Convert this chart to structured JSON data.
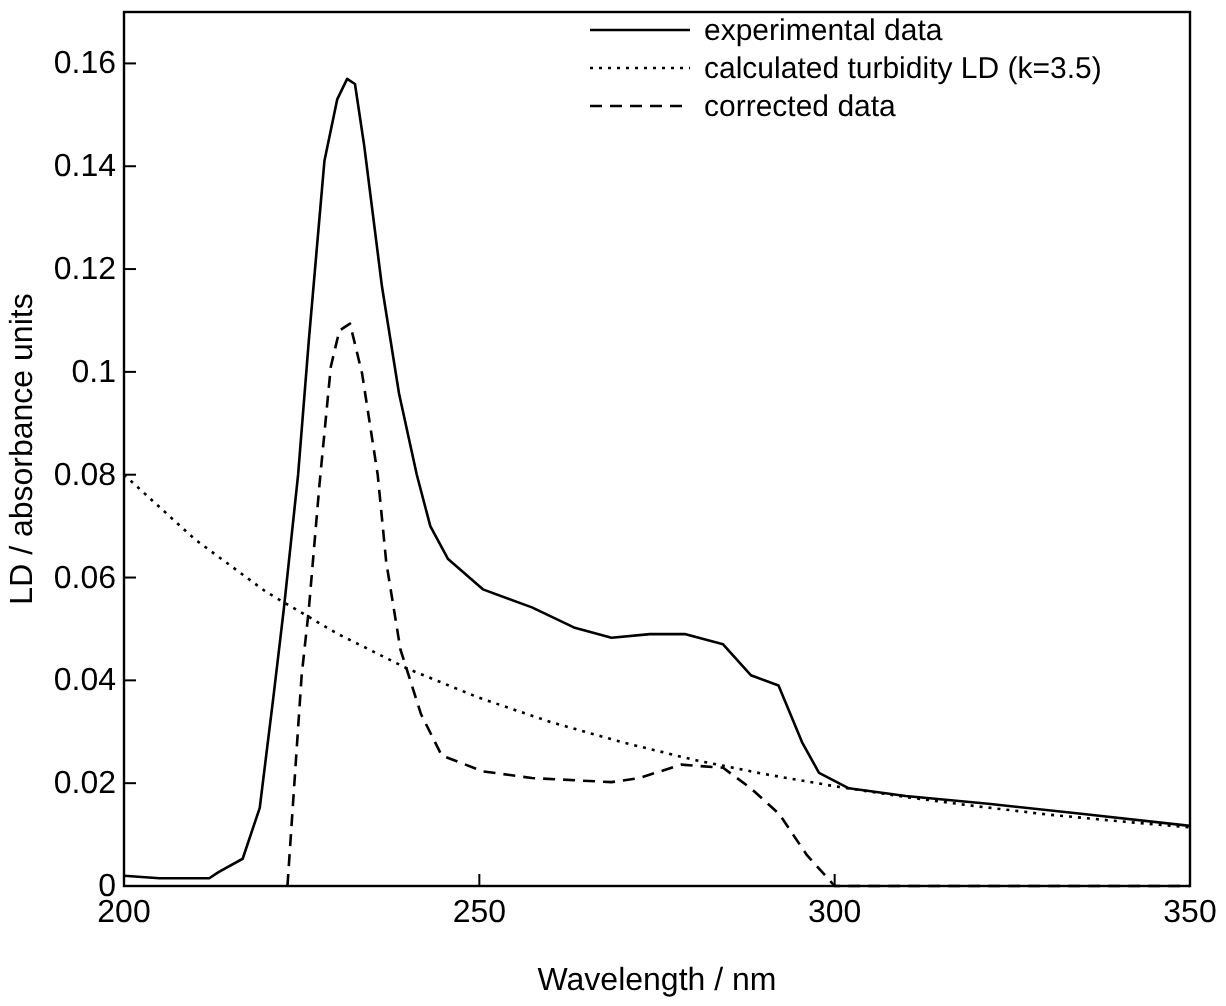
{
  "chart_data": {
    "type": "line",
    "xlabel": "Wavelength / nm",
    "ylabel": "LD / absorbance units",
    "xlim": [
      200,
      350
    ],
    "ylim": [
      0,
      0.17
    ],
    "xticks": [
      200,
      250,
      300,
      350
    ],
    "yticks": [
      0,
      0.02,
      0.04,
      0.06,
      0.08,
      0.1,
      0.12,
      0.14,
      0.16
    ],
    "grid": false,
    "legend": "top right",
    "series": [
      {
        "name": "experimental data",
        "color": "#000000",
        "line_style": "solid",
        "x": [
          200,
          205,
          212,
          213.3,
          216.7,
          219.1,
          221,
          222.5,
          224.5,
          226,
          228.2,
          230,
          231.4,
          232.5,
          233.8,
          236.3,
          238.7,
          241.2,
          243.1,
          245.6,
          250.5,
          257.4,
          263.3,
          268.6,
          274,
          278.9,
          284.3,
          288.2,
          292.1,
          295.4,
          297.8,
          302,
          310,
          321.6,
          335,
          350
        ],
        "values": [
          0.002,
          0.0015,
          0.0015,
          0.0027,
          0.0053,
          0.0152,
          0.0365,
          0.054,
          0.08,
          0.106,
          0.141,
          0.153,
          0.157,
          0.156,
          0.144,
          0.1166,
          0.0958,
          0.08,
          0.07,
          0.0636,
          0.0577,
          0.0542,
          0.0503,
          0.0483,
          0.049,
          0.049,
          0.047,
          0.041,
          0.039,
          0.028,
          0.022,
          0.019,
          0.0175,
          0.016,
          0.014,
          0.0117
        ]
      },
      {
        "name": "calculated turbidity LD (k=3.5)",
        "color": "#000000",
        "line_style": "dotted",
        "x": [
          200,
          210,
          220,
          230,
          240,
          250,
          260,
          270,
          280,
          290,
          300,
          310,
          320,
          330,
          340,
          350
        ],
        "values": [
          0.08,
          0.0674,
          0.0572,
          0.0491,
          0.0422,
          0.0366,
          0.0319,
          0.028,
          0.0246,
          0.0218,
          0.0194,
          0.0173,
          0.0155,
          0.0139,
          0.0126,
          0.0114
        ]
      },
      {
        "name": "corrected data",
        "color": "#000000",
        "line_style": "dashed",
        "x": [
          223,
          225,
          226,
          227.5,
          229.1,
          230.3,
          231.8,
          233.5,
          235.7,
          236.9,
          238.9,
          241.8,
          244.7,
          250.5,
          257.4,
          268.6,
          272.5,
          278.4,
          284.3,
          288.2,
          292.2,
          296.1,
          300,
          320,
          350
        ],
        "values": [
          0,
          0.041,
          0.0537,
          0.078,
          0.101,
          0.108,
          0.1094,
          0.0997,
          0.08,
          0.063,
          0.046,
          0.0334,
          0.0254,
          0.0223,
          0.021,
          0.0202,
          0.021,
          0.0236,
          0.023,
          0.019,
          0.014,
          0.006,
          0,
          0,
          0
        ]
      }
    ]
  }
}
